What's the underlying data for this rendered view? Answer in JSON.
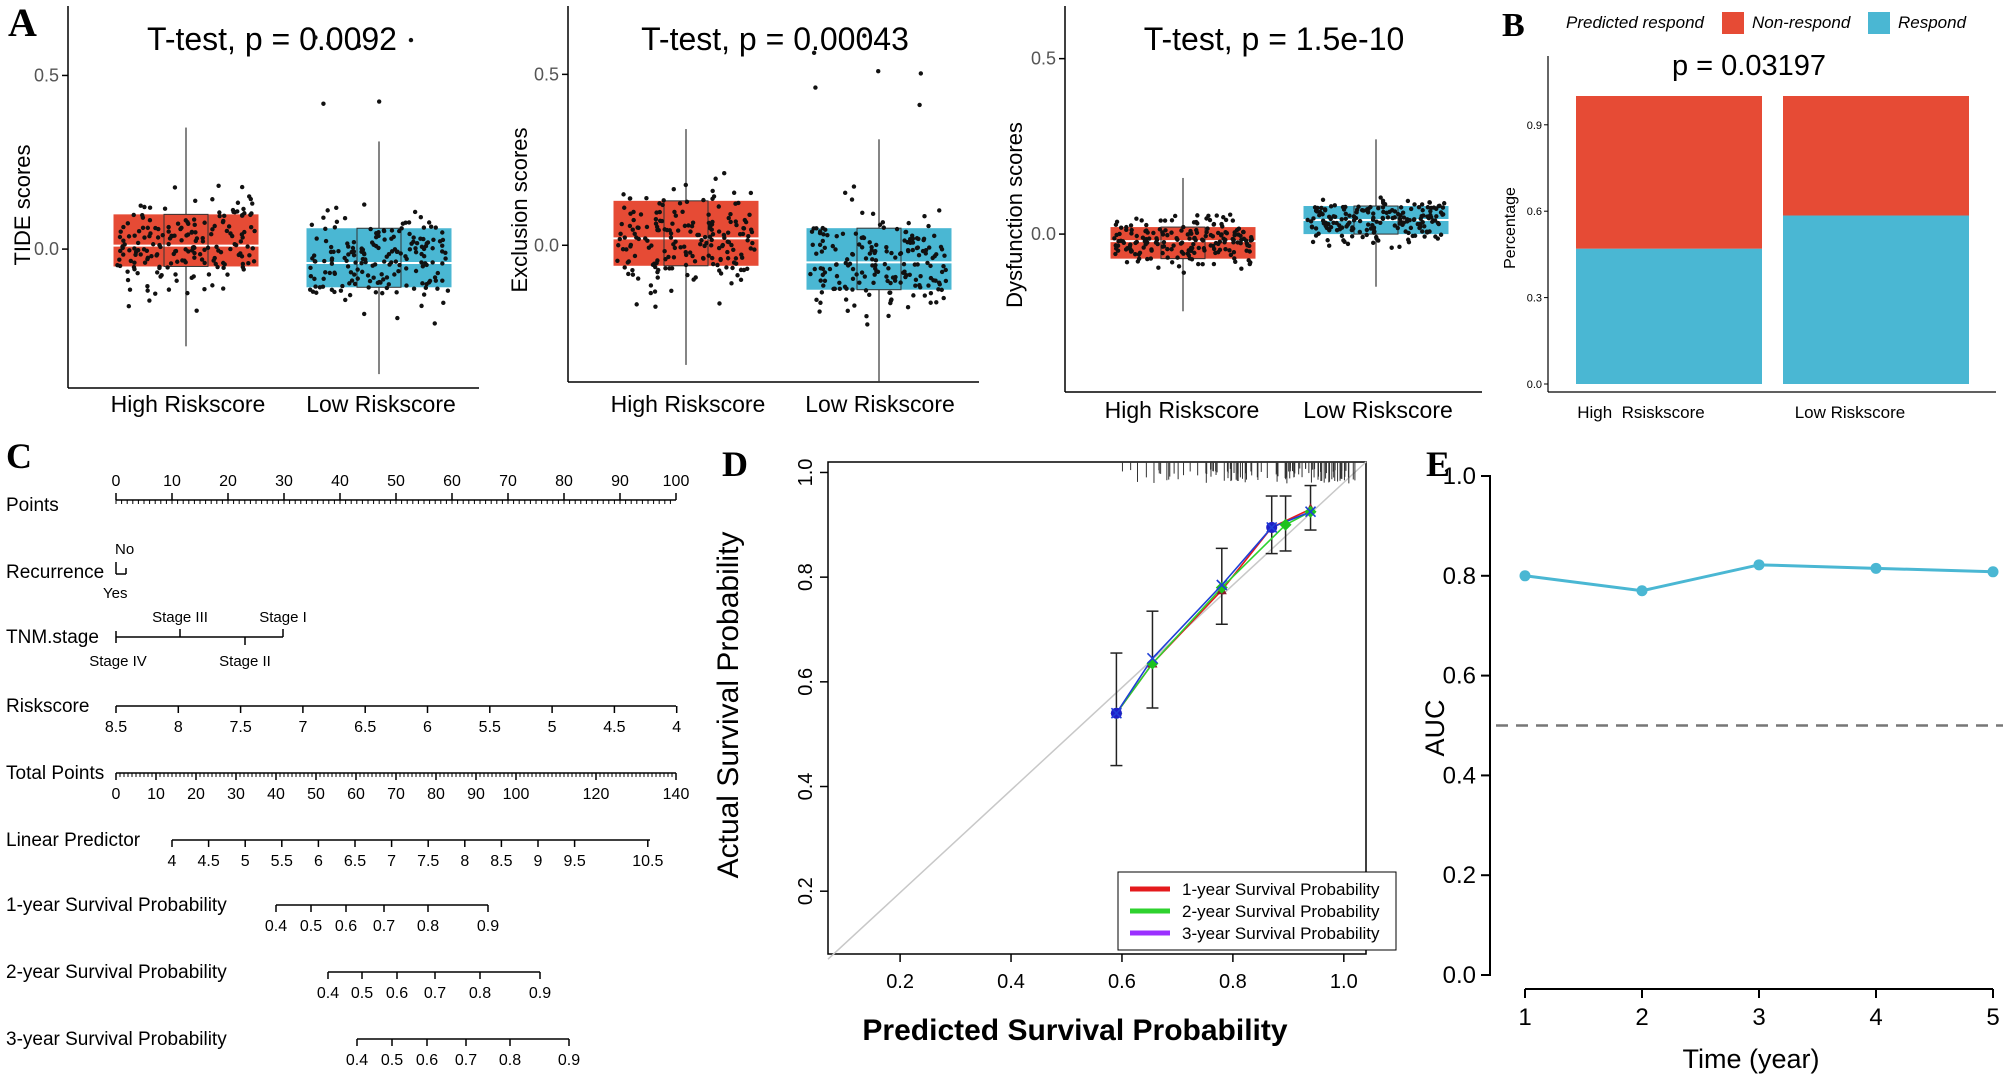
{
  "colors": {
    "high": "#e64b35",
    "low": "#4ab7d3",
    "lr1": "#e41a1c",
    "lr2": "#2ed22e",
    "lr3": "#9b30ff",
    "auc": "#4ab7d3"
  },
  "panels": {
    "a": "A",
    "b": "B",
    "c": "C",
    "d": "D",
    "e": "E"
  },
  "chart_data": [
    {
      "id": "tide",
      "type": "box",
      "title": "T-test, p = 0.0092",
      "ylabel": "TIDE scores",
      "categories": [
        "High Riskscore",
        "Low Riskscore"
      ],
      "ylim": [
        -0.4,
        0.7
      ],
      "yticks": [
        0.0,
        0.5
      ],
      "ytick_labels": [
        "0.0",
        "0.5"
      ],
      "boxes": [
        {
          "q1": -0.05,
          "median": 0.01,
          "q3": 0.1,
          "whisk_lo": -0.28,
          "whisk_hi": 0.35
        },
        {
          "q1": -0.11,
          "median": -0.04,
          "q3": 0.06,
          "whisk_lo": -0.36,
          "whisk_hi": 0.31
        }
      ]
    },
    {
      "id": "exclusion",
      "type": "box",
      "title": "T-test, p = 0.00043",
      "ylabel": "Exclusion scores",
      "categories": [
        "High Riskscore",
        "Low Riskscore"
      ],
      "ylim": [
        -0.4,
        0.7
      ],
      "yticks": [
        0.0,
        0.5
      ],
      "ytick_labels": [
        "0.0",
        "0.5"
      ],
      "boxes": [
        {
          "q1": -0.06,
          "median": 0.02,
          "q3": 0.13,
          "whisk_lo": -0.35,
          "whisk_hi": 0.34
        },
        {
          "q1": -0.13,
          "median": -0.05,
          "q3": 0.05,
          "whisk_lo": -0.4,
          "whisk_hi": 0.31
        }
      ]
    },
    {
      "id": "dysfunction",
      "type": "box",
      "title": "T-test, p = 1.5e-10",
      "ylabel": "Dysfunction scores",
      "categories": [
        "High Riskscore",
        "Low Riskscore"
      ],
      "ylim": [
        -0.45,
        0.65
      ],
      "yticks": [
        0.0,
        0.5
      ],
      "ytick_labels": [
        "0.0",
        "0.5"
      ],
      "boxes": [
        {
          "q1": -0.07,
          "median": -0.02,
          "q3": 0.02,
          "whisk_lo": -0.22,
          "whisk_hi": 0.16
        },
        {
          "q1": 0.0,
          "median": 0.04,
          "q3": 0.08,
          "whisk_lo": -0.15,
          "whisk_hi": 0.27
        }
      ]
    },
    {
      "id": "respond",
      "type": "bar",
      "stacked": true,
      "title": "p = 0.03197",
      "ylabel": "Percentage",
      "legend_title": "Predicted respond",
      "categories": [
        "High  Rsiskscore",
        "Low Riskscore"
      ],
      "ylim": [
        0,
        1
      ],
      "yticks": [
        0,
        0.3,
        0.6,
        0.9
      ],
      "ytick_labels": [
        "0.0",
        "0.3",
        "0.6",
        "0.9"
      ],
      "series": [
        {
          "name": "Non-respond",
          "values": [
            0.53,
            0.415
          ]
        },
        {
          "name": "Respond",
          "values": [
            0.47,
            0.585
          ]
        }
      ]
    },
    {
      "id": "calibration",
      "type": "line",
      "xlabel": "Predicted Survival Probability",
      "ylabel": "Actual Survival Probability",
      "xlim": [
        0.07,
        1.04
      ],
      "ylim": [
        0.08,
        1.02
      ],
      "xticks": [
        0.2,
        0.4,
        0.6,
        0.8,
        1.0
      ],
      "xtick_labels": [
        "0.2",
        "0.4",
        "0.6",
        "0.8",
        "1.0"
      ],
      "yticks": [
        0.2,
        0.4,
        0.6,
        0.8,
        1.0
      ],
      "ytick_labels": [
        "0.2",
        "0.4",
        "0.6",
        "0.8",
        "1.0"
      ],
      "series": [
        {
          "name": "1-year Survival Probability",
          "x": [
            0.59,
            0.655,
            0.78,
            0.87,
            0.94
          ],
          "y": [
            0.54,
            0.635,
            0.775,
            0.895,
            0.93
          ]
        },
        {
          "name": "2-year Survival Probability",
          "x": [
            0.59,
            0.655,
            0.78,
            0.895,
            0.94
          ],
          "y": [
            0.54,
            0.635,
            0.78,
            0.9,
            0.925
          ]
        },
        {
          "name": "3-year Survival Probability",
          "x": [
            0.59,
            0.655,
            0.78,
            0.87,
            0.94
          ],
          "y": [
            0.54,
            0.645,
            0.785,
            0.895,
            0.925
          ]
        }
      ],
      "errorbars": [
        {
          "x": 0.59,
          "lo": 0.44,
          "hi": 0.655
        },
        {
          "x": 0.655,
          "lo": 0.55,
          "hi": 0.735
        },
        {
          "x": 0.78,
          "lo": 0.71,
          "hi": 0.855
        },
        {
          "x": 0.87,
          "lo": 0.845,
          "hi": 0.955
        },
        {
          "x": 0.895,
          "lo": 0.85,
          "hi": 0.955
        },
        {
          "x": 0.94,
          "lo": 0.89,
          "hi": 0.975
        }
      ]
    },
    {
      "id": "auc",
      "type": "line",
      "xlabel": "Time (year)",
      "ylabel": "AUC",
      "x": [
        1,
        2,
        3,
        4,
        5
      ],
      "y": [
        0.8,
        0.77,
        0.822,
        0.815,
        0.808
      ],
      "reference": 0.5,
      "xlim": [
        1,
        5
      ],
      "ylim": [
        0,
        1
      ],
      "xticks": [
        1,
        2,
        3,
        4,
        5
      ],
      "xtick_labels": [
        "1",
        "2",
        "3",
        "4",
        "5"
      ],
      "yticks": [
        0,
        0.2,
        0.4,
        0.6,
        0.8,
        1.0
      ],
      "ytick_labels": [
        "0.0",
        "0.2",
        "0.4",
        "0.6",
        "0.8",
        "1.0"
      ]
    },
    {
      "id": "nomogram",
      "type": "nomogram",
      "rows": [
        {
          "name": "Points",
          "ticks": [
            0,
            10,
            20,
            30,
            40,
            50,
            60,
            70,
            80,
            90,
            100
          ],
          "labels": [
            "0",
            "10",
            "20",
            "30",
            "40",
            "50",
            "60",
            "70",
            "80",
            "90",
            "100"
          ]
        },
        {
          "name": "Recurrence",
          "labels": [
            "No",
            "Yes"
          ]
        },
        {
          "name": "TNM.stage",
          "above": [
            "Stage III",
            "Stage I"
          ],
          "below": [
            "Stage IV",
            "Stage II"
          ]
        },
        {
          "name": "Riskscore",
          "labels": [
            "8.5",
            "8",
            "7.5",
            "7",
            "6.5",
            "6",
            "5.5",
            "5",
            "4.5",
            "4"
          ]
        },
        {
          "name": "Total Points",
          "ticks": [
            0,
            10,
            20,
            30,
            40,
            50,
            60,
            70,
            80,
            90,
            100,
            120,
            140
          ],
          "labels": [
            "0",
            "10",
            "20",
            "30",
            "40",
            "50",
            "60",
            "70",
            "80",
            "90",
            "100",
            "120",
            "140"
          ]
        },
        {
          "name": "Linear Predictor",
          "labels": [
            "4",
            "4.5",
            "5",
            "5.5",
            "6",
            "6.5",
            "7",
            "7.5",
            "8",
            "8.5",
            "9",
            "9.5",
            "10.5"
          ]
        },
        {
          "name": "1-year Survival Probability",
          "labels": [
            "0.4",
            "0.5",
            "0.6",
            "0.7",
            "0.8",
            "0.9"
          ]
        },
        {
          "name": "2-year Survival Probability",
          "labels": [
            "0.4",
            "0.5",
            "0.6",
            "0.7",
            "0.8",
            "0.9"
          ]
        },
        {
          "name": "3-year Survival Probability",
          "labels": [
            "0.4",
            "0.5",
            "0.6",
            "0.7",
            "0.8",
            "0.9"
          ]
        }
      ]
    }
  ]
}
